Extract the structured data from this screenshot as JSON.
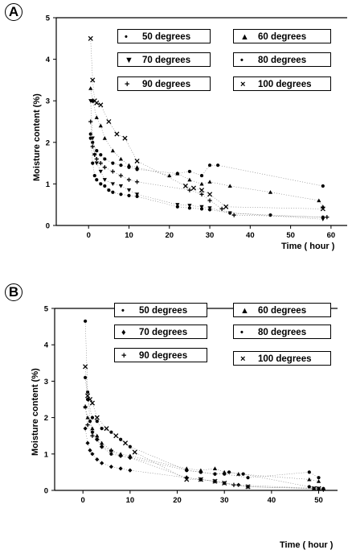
{
  "chart_data": [
    {
      "panel_label": "A",
      "type": "scatter",
      "xlabel": "Time ( hour )",
      "ylabel": "Moisture content (%)",
      "xlim": [
        -8,
        64
      ],
      "ylim": [
        0,
        5
      ],
      "xticks": [
        "0",
        "10",
        "20",
        "30",
        "40",
        "50",
        "60"
      ],
      "yticks": [
        "0",
        "1",
        "2",
        "3",
        "4",
        "5"
      ],
      "legend": [
        {
          "label": "50 degrees",
          "marker": "•"
        },
        {
          "label": "60 degrees",
          "marker": "▲"
        },
        {
          "label": "70 degrees",
          "marker": "▼"
        },
        {
          "label": "80 degrees",
          "marker": "•"
        },
        {
          "label": "90 degrees",
          "marker": "+"
        },
        {
          "label": "100 degrees",
          "marker": "×"
        }
      ],
      "series": [
        {
          "name": "50 degrees",
          "marker": "dot",
          "x": [
            0.5,
            1,
            1.5,
            2,
            3,
            4,
            5,
            6,
            8,
            10,
            12,
            22,
            25,
            28,
            30,
            35,
            45,
            58
          ],
          "y": [
            2.1,
            1.5,
            1.2,
            1.1,
            1.0,
            0.95,
            0.85,
            0.8,
            0.75,
            0.72,
            0.7,
            0.45,
            0.42,
            0.4,
            0.38,
            0.3,
            0.25,
            0.2
          ]
        },
        {
          "name": "60 degrees",
          "marker": "triangle-up",
          "x": [
            0.5,
            1,
            2,
            3,
            4,
            6,
            8,
            10,
            12,
            20,
            22,
            25,
            28,
            30,
            35,
            45,
            57,
            58
          ],
          "y": [
            3.3,
            3.0,
            2.6,
            2.4,
            2.1,
            1.8,
            1.6,
            1.45,
            1.4,
            1.2,
            1.25,
            1.1,
            1.0,
            1.05,
            0.95,
            0.8,
            0.6,
            0.45
          ]
        },
        {
          "name": "70 degrees",
          "marker": "triangle-down",
          "x": [
            0.5,
            1,
            1.5,
            2,
            3,
            4,
            6,
            8,
            10,
            12,
            22,
            25,
            28,
            30,
            35,
            58
          ],
          "y": [
            3.0,
            2.1,
            1.7,
            1.5,
            1.3,
            1.1,
            1.0,
            0.95,
            0.85,
            0.75,
            0.5,
            0.48,
            0.45,
            0.42,
            0.3,
            0.15
          ]
        },
        {
          "name": "80 degrees",
          "marker": "dot",
          "x": [
            0.5,
            1,
            2,
            3,
            4,
            6,
            8,
            10,
            12,
            22,
            25,
            28,
            30,
            32,
            58
          ],
          "y": [
            2.2,
            2.0,
            1.8,
            1.7,
            1.6,
            1.5,
            1.45,
            1.4,
            1.35,
            1.25,
            1.3,
            1.2,
            1.45,
            1.45,
            0.95
          ]
        },
        {
          "name": "90 degrees",
          "marker": "plus",
          "x": [
            0.5,
            1,
            1.5,
            2,
            3,
            4,
            6,
            8,
            10,
            12,
            25,
            28,
            30,
            33,
            36,
            59
          ],
          "y": [
            2.5,
            1.9,
            1.7,
            1.6,
            1.5,
            1.4,
            1.3,
            1.2,
            1.1,
            1.05,
            0.85,
            0.75,
            0.6,
            0.4,
            0.25,
            0.2
          ]
        },
        {
          "name": "100 degrees",
          "marker": "x",
          "x": [
            0.5,
            1,
            1.5,
            2,
            3,
            5,
            7,
            9,
            12,
            24,
            26,
            28,
            30,
            34,
            58
          ],
          "y": [
            4.5,
            3.5,
            3.0,
            2.95,
            2.9,
            2.5,
            2.2,
            2.1,
            1.55,
            0.95,
            0.9,
            0.85,
            0.75,
            0.45,
            0.4
          ]
        }
      ]
    },
    {
      "panel_label": "B",
      "type": "scatter",
      "xlabel": "Time ( hour )",
      "ylabel": "Moisture content (%)",
      "xlim": [
        -6,
        54
      ],
      "ylim": [
        0,
        5
      ],
      "xticks": [
        "0",
        "10",
        "20",
        "30",
        "40",
        "50"
      ],
      "yticks": [
        "0",
        "1",
        "2",
        "3",
        "4",
        "5"
      ],
      "legend": [
        {
          "label": "50 degrees",
          "marker": "•"
        },
        {
          "label": "60 degrees",
          "marker": "▲"
        },
        {
          "label": "70 degrees",
          "marker": "♦"
        },
        {
          "label": "80 degrees",
          "marker": "•"
        },
        {
          "label": "90 degrees",
          "marker": "+"
        },
        {
          "label": "100 degrees",
          "marker": "×"
        }
      ],
      "series": [
        {
          "name": "50 degrees",
          "marker": "dot",
          "x": [
            0.5,
            1,
            1.5,
            2,
            3,
            4,
            6,
            8,
            10,
            22,
            25,
            28,
            30,
            35,
            48,
            50
          ],
          "y": [
            4.65,
            2.7,
            1.9,
            1.6,
            1.4,
            1.2,
            1.0,
            0.95,
            0.9,
            0.55,
            0.5,
            0.45,
            0.45,
            0.35,
            0.5,
            0.35
          ]
        },
        {
          "name": "60 degrees",
          "marker": "triangle-up",
          "x": [
            0.5,
            1,
            2,
            3,
            4,
            6,
            8,
            10,
            22,
            25,
            28,
            30,
            33,
            48,
            50
          ],
          "y": [
            2.3,
            2.0,
            1.7,
            1.5,
            1.3,
            1.1,
            1.0,
            0.95,
            0.6,
            0.55,
            0.6,
            0.5,
            0.45,
            0.3,
            0.25
          ]
        },
        {
          "name": "70 degrees",
          "marker": "diamond",
          "x": [
            0.5,
            1,
            1.5,
            2,
            3,
            4,
            6,
            8,
            10,
            22,
            25,
            28,
            30,
            33,
            50
          ],
          "y": [
            1.7,
            1.3,
            1.1,
            1.0,
            0.85,
            0.75,
            0.65,
            0.6,
            0.55,
            0.35,
            0.3,
            0.25,
            0.2,
            0.15,
            0.05
          ]
        },
        {
          "name": "80 degrees",
          "marker": "dot",
          "x": [
            0.5,
            1,
            2,
            3,
            4,
            6,
            8,
            10,
            22,
            25,
            28,
            31,
            34,
            48,
            51
          ],
          "y": [
            3.1,
            2.5,
            2.0,
            1.9,
            1.7,
            1.6,
            1.4,
            1.2,
            0.55,
            0.5,
            0.45,
            0.5,
            0.45,
            0.1,
            0.05
          ]
        },
        {
          "name": "90 degrees",
          "marker": "plus",
          "x": [
            0.5,
            1,
            2,
            3,
            4,
            6,
            8,
            10,
            22,
            25,
            28,
            32,
            35,
            49,
            51
          ],
          "y": [
            2.3,
            1.8,
            1.5,
            1.4,
            1.2,
            1.1,
            0.95,
            0.9,
            0.35,
            0.3,
            0.25,
            0.15,
            0.1,
            0.05,
            0.02
          ]
        },
        {
          "name": "100 degrees",
          "marker": "x",
          "x": [
            0.5,
            1,
            1.5,
            2,
            3,
            5,
            7,
            9,
            11,
            22,
            25,
            28,
            30,
            35,
            49,
            50
          ],
          "y": [
            3.4,
            2.6,
            2.5,
            2.4,
            2.0,
            1.7,
            1.5,
            1.3,
            1.05,
            0.3,
            0.3,
            0.25,
            0.2,
            0.1,
            0.05,
            0.05
          ]
        }
      ]
    }
  ]
}
